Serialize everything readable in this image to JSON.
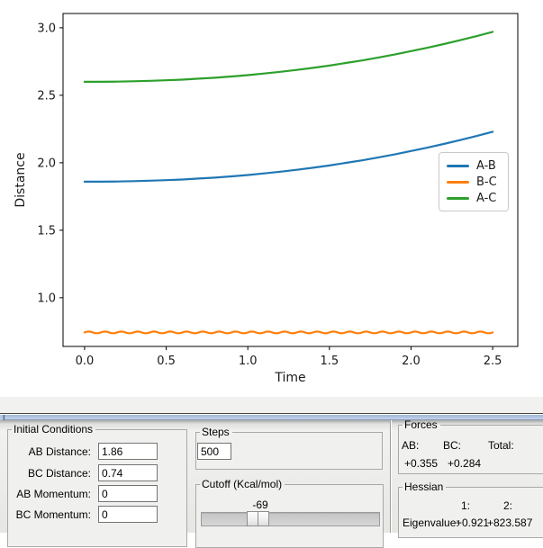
{
  "chart_data": {
    "type": "line",
    "title": "",
    "xlabel": "Time",
    "ylabel": "Distance",
    "xlim": [
      -0.132,
      2.654
    ],
    "ylim": [
      0.639,
      3.106
    ],
    "x_ticks": [
      0,
      0.5,
      1.0,
      1.5,
      2.0,
      2.5
    ],
    "x_tick_labels": [
      "0.0",
      "0.5",
      "1.0",
      "1.5",
      "2.0",
      "2.5"
    ],
    "y_ticks": [
      1.0,
      1.5,
      2.0,
      2.5,
      3.0
    ],
    "y_tick_labels": [
      "1.0",
      "1.5",
      "2.0",
      "2.5",
      "3.0"
    ],
    "grid": false,
    "legend_position": "center-right",
    "legend_entries": [
      "A-B",
      "B-C",
      "A-C"
    ],
    "x": [
      0,
      0.1,
      0.2,
      0.3,
      0.4,
      0.5,
      0.6,
      0.7,
      0.8,
      0.9,
      1.0,
      1.1,
      1.2,
      1.3,
      1.4,
      1.5,
      1.6,
      1.7,
      1.8,
      1.9,
      2.0,
      2.1,
      2.2,
      2.3,
      2.4,
      2.5
    ],
    "series": [
      {
        "name": "A-B",
        "color": "#1f77b4",
        "values": [
          1.86,
          1.86,
          1.861,
          1.864,
          1.867,
          1.871,
          1.876,
          1.883,
          1.89,
          1.899,
          1.909,
          1.921,
          1.934,
          1.948,
          1.963,
          1.98,
          1.999,
          2.018,
          2.04,
          2.062,
          2.087,
          2.112,
          2.139,
          2.168,
          2.198,
          2.23
        ]
      },
      {
        "name": "B-C",
        "color": "#ff7f0e",
        "wave": {
          "base": 0.743,
          "amplitude": 0.0065,
          "period": 0.1,
          "t_start": 0,
          "t_end": 2.5
        }
      },
      {
        "name": "A-C",
        "color": "#2ca02c",
        "values": [
          2.6,
          2.6,
          2.601,
          2.604,
          2.607,
          2.611,
          2.616,
          2.623,
          2.63,
          2.639,
          2.649,
          2.661,
          2.674,
          2.688,
          2.703,
          2.72,
          2.739,
          2.758,
          2.78,
          2.802,
          2.827,
          2.852,
          2.879,
          2.908,
          2.938,
          2.97
        ]
      }
    ]
  },
  "panel": {
    "initial_conditions": {
      "title": "Initial Conditions",
      "fields": [
        {
          "label": "AB Distance:",
          "value": "1.86"
        },
        {
          "label": "BC Distance:",
          "value": "0.74"
        },
        {
          "label": "AB Momentum:",
          "value": "0"
        },
        {
          "label": "BC Momentum:",
          "value": "0"
        }
      ]
    },
    "steps": {
      "title": "Steps",
      "value": "500"
    },
    "cutoff": {
      "title": "Cutoff (Kcal/mol)",
      "value": "-69"
    },
    "forces": {
      "title": "Forces",
      "columns": [
        "AB:",
        "BC:",
        "Total:"
      ],
      "values": [
        "+0.355",
        "+0.284"
      ]
    },
    "hessian": {
      "title": "Hessian",
      "columns": [
        "1:",
        "2:"
      ],
      "row_label": "Eigenvalue:",
      "values": [
        "+0.921",
        "+823.587"
      ]
    }
  },
  "colors": {
    "window_border_blue": "#9fb6d9",
    "panel_face": "#efefed",
    "series_ab": "#1f77b4",
    "series_bc": "#ff7f0e",
    "series_ac": "#2ca02c"
  }
}
